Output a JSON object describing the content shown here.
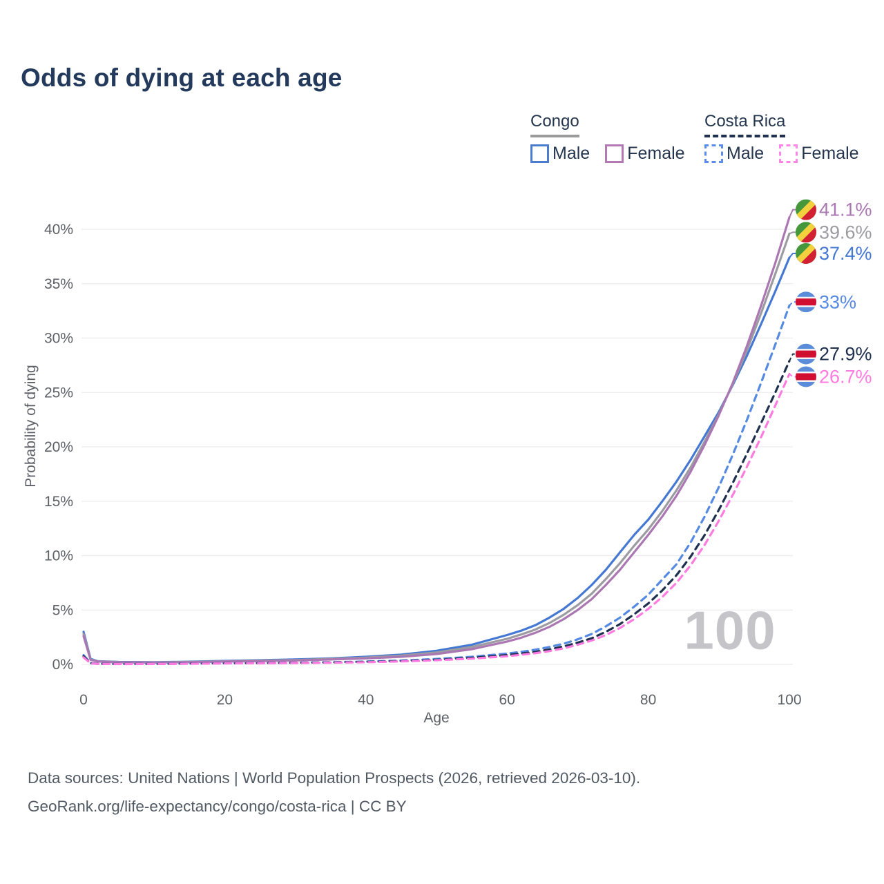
{
  "title": "Odds of dying at each age",
  "legend": {
    "groups": [
      {
        "label": "Congo",
        "line_style": "solid",
        "underline_color": "#9b9b9b",
        "items": [
          {
            "label": "Male",
            "color": "#4c7cd2"
          },
          {
            "label": "Female",
            "color": "#b17ab4"
          }
        ]
      },
      {
        "label": "Costa Rica",
        "line_style": "dashed",
        "underline_color": "#203150",
        "items": [
          {
            "label": "Male",
            "color": "#5b8de8"
          },
          {
            "label": "Female",
            "color": "#ff85e7"
          }
        ]
      }
    ]
  },
  "watermark": "100",
  "footer": {
    "line1": "Data sources: United Nations | World Population Prospects (2026, retrieved 2026-03-10).",
    "line2": "GeoRank.org/life-expectancy/congo/costa-rica | CC BY"
  },
  "chart_data": {
    "type": "line",
    "title": "Odds of dying at each age",
    "xlabel": "Age",
    "ylabel": "Probability of dying",
    "xlim": [
      0,
      100
    ],
    "ylim": [
      0,
      42
    ],
    "x_ticks": [
      0,
      20,
      40,
      60,
      80,
      100
    ],
    "y_ticks": [
      0,
      5,
      10,
      15,
      20,
      25,
      30,
      35,
      40
    ],
    "y_tick_suffix": "%",
    "grid": "horizontal-only",
    "legend_position": "top-right",
    "x": [
      0,
      1,
      2,
      5,
      10,
      15,
      20,
      25,
      30,
      35,
      40,
      45,
      50,
      55,
      60,
      62,
      64,
      66,
      68,
      70,
      72,
      74,
      76,
      78,
      80,
      82,
      84,
      86,
      88,
      90,
      92,
      94,
      96,
      98,
      100
    ],
    "series": [
      {
        "name": "Congo Male",
        "country": "Congo",
        "sex": "Male",
        "color": "#4478d2",
        "dash": false,
        "flag": "congo",
        "end_label": "37.4%",
        "label_dy": -6,
        "values": [
          3.0,
          0.5,
          0.3,
          0.22,
          0.2,
          0.25,
          0.32,
          0.38,
          0.45,
          0.55,
          0.7,
          0.9,
          1.25,
          1.8,
          2.7,
          3.1,
          3.6,
          4.3,
          5.1,
          6.1,
          7.3,
          8.7,
          10.3,
          11.9,
          13.3,
          15.0,
          16.8,
          18.8,
          21.0,
          23.2,
          25.7,
          28.4,
          31.3,
          34.3,
          37.4
        ]
      },
      {
        "name": "Congo Both sexes",
        "country": "Congo",
        "sex": "Both",
        "color": "#9b9ba1",
        "dash": false,
        "flag": "congo",
        "end_label": "39.6%",
        "label_dy": -2,
        "values": [
          2.8,
          0.45,
          0.28,
          0.2,
          0.18,
          0.22,
          0.28,
          0.34,
          0.4,
          0.5,
          0.62,
          0.8,
          1.1,
          1.6,
          2.35,
          2.75,
          3.2,
          3.8,
          4.55,
          5.45,
          6.5,
          7.85,
          9.3,
          10.9,
          12.4,
          14.1,
          16.0,
          18.1,
          20.5,
          23.0,
          25.8,
          28.9,
          32.3,
          35.9,
          39.6
        ]
      },
      {
        "name": "Congo Female",
        "country": "Congo",
        "sex": "Female",
        "color": "#aa77b2",
        "dash": false,
        "flag": "congo",
        "end_label": "41.1%",
        "label_dy": -11,
        "values": [
          2.6,
          0.42,
          0.26,
          0.19,
          0.17,
          0.2,
          0.26,
          0.3,
          0.36,
          0.45,
          0.55,
          0.7,
          0.95,
          1.4,
          2.1,
          2.45,
          2.9,
          3.45,
          4.15,
          5.0,
          6.0,
          7.3,
          8.7,
          10.3,
          11.9,
          13.6,
          15.5,
          17.7,
          20.2,
          22.9,
          25.9,
          29.3,
          33.0,
          36.9,
          41.1
        ]
      },
      {
        "name": "Costa Rica Male",
        "country": "Costa Rica",
        "sex": "Male",
        "color": "#5589e2",
        "dash": true,
        "flag": "costa-rica",
        "end_label": "33%",
        "label_dy": -5,
        "values": [
          0.85,
          0.12,
          0.06,
          0.04,
          0.05,
          0.08,
          0.11,
          0.13,
          0.16,
          0.2,
          0.26,
          0.35,
          0.5,
          0.7,
          1.0,
          1.15,
          1.35,
          1.6,
          1.9,
          2.3,
          2.8,
          3.5,
          4.3,
          5.3,
          6.4,
          7.8,
          9.2,
          11.2,
          13.6,
          16.3,
          19.3,
          22.5,
          25.9,
          29.4,
          33.0
        ]
      },
      {
        "name": "Costa Rica Both sexes",
        "country": "Costa Rica",
        "sex": "Both",
        "color": "#203150",
        "dash": true,
        "flag": "costa-rica",
        "end_label": "27.9%",
        "label_dy": -10,
        "values": [
          0.75,
          0.1,
          0.05,
          0.035,
          0.04,
          0.07,
          0.1,
          0.12,
          0.14,
          0.18,
          0.23,
          0.3,
          0.42,
          0.6,
          0.85,
          1.0,
          1.15,
          1.38,
          1.65,
          2.0,
          2.4,
          3.0,
          3.7,
          4.6,
          5.6,
          6.8,
          8.2,
          9.9,
          11.9,
          14.2,
          16.7,
          19.4,
          22.2,
          25.0,
          27.9
        ]
      },
      {
        "name": "Costa Rica Female",
        "country": "Costa Rica",
        "sex": "Female",
        "color": "#ff7bdf",
        "dash": true,
        "flag": "costa-rica",
        "end_label": "26.7%",
        "label_dy": 4,
        "values": [
          0.65,
          0.09,
          0.045,
          0.03,
          0.035,
          0.06,
          0.09,
          0.11,
          0.13,
          0.16,
          0.2,
          0.27,
          0.38,
          0.53,
          0.75,
          0.88,
          1.03,
          1.22,
          1.47,
          1.8,
          2.2,
          2.7,
          3.35,
          4.15,
          5.1,
          6.2,
          7.5,
          9.1,
          11.0,
          13.2,
          15.6,
          18.2,
          20.9,
          23.8,
          26.7
        ]
      }
    ],
    "annotations": [
      {
        "text": "100",
        "meaning": "age-counter-watermark"
      }
    ]
  }
}
